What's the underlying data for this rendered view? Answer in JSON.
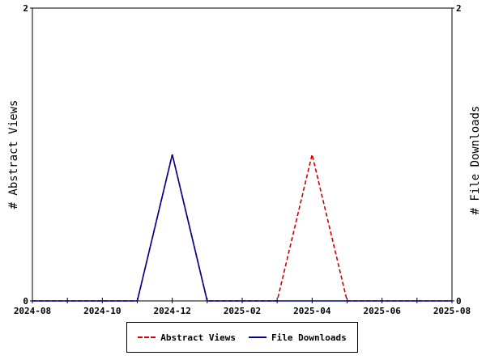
{
  "chart_data": {
    "type": "line",
    "x_ticks": [
      "2024-08",
      "2024-10",
      "2024-12",
      "2025-02",
      "2025-04",
      "2025-06",
      "2025-08"
    ],
    "x_months": [
      "2024-08",
      "2024-09",
      "2024-10",
      "2024-11",
      "2024-12",
      "2025-01",
      "2025-02",
      "2025-03",
      "2025-04",
      "2025-05",
      "2025-06",
      "2025-07",
      "2025-08"
    ],
    "ylabel_left": "# Abstract Views",
    "ylabel_right": "# File Downloads",
    "y_ticks_left": [
      "0",
      "2"
    ],
    "y_ticks_right": [
      "0",
      "2"
    ],
    "ylim": [
      0,
      2
    ],
    "grid": false,
    "legend_placement": "bottom",
    "series": [
      {
        "name": "Abstract Views",
        "color": "#cc0000",
        "style": "dashed",
        "axis": "left",
        "values": [
          0,
          0,
          0,
          0,
          1,
          0,
          0,
          0,
          1,
          0,
          0,
          0,
          0
        ]
      },
      {
        "name": "File Downloads",
        "color": "#00008b",
        "style": "solid",
        "axis": "right",
        "values": [
          0,
          0,
          0,
          0,
          1,
          0,
          0,
          0,
          0,
          0,
          0,
          0,
          0
        ]
      }
    ]
  }
}
